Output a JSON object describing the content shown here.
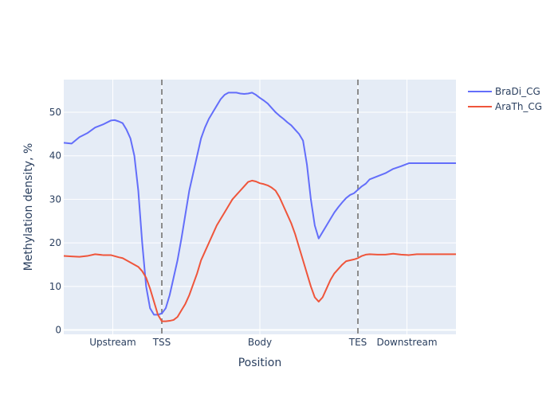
{
  "chart_data": {
    "type": "line",
    "xlabel": "Position",
    "ylabel": "Methylation density, %",
    "xlim": [
      0,
      100
    ],
    "ylim": [
      -1,
      57.5
    ],
    "y_ticks": [
      0,
      10,
      20,
      30,
      40,
      50
    ],
    "x_ticks": [
      {
        "label": "Upstream",
        "x": 12.5
      },
      {
        "label": "TSS",
        "x": 25
      },
      {
        "label": "Body",
        "x": 50
      },
      {
        "label": "TES",
        "x": 75
      },
      {
        "label": "Downstream",
        "x": 87.5
      }
    ],
    "vlines": [
      25,
      75
    ],
    "grid": true,
    "legend_position": "top-right",
    "series": [
      {
        "name": "BraDi_CG",
        "color": "#636efa",
        "x": [
          0,
          2,
          4,
          6,
          8,
          10,
          12,
          13,
          14,
          15,
          16,
          17,
          18,
          19,
          20,
          21,
          22,
          23,
          24,
          25,
          26,
          27,
          28,
          29,
          30,
          31,
          32,
          33,
          34,
          35,
          36,
          37,
          38,
          39,
          40,
          41,
          42,
          43,
          44,
          45,
          46,
          47,
          48,
          49,
          50,
          51,
          52,
          53,
          54,
          55,
          56,
          57,
          58,
          59,
          60,
          61,
          62,
          63,
          64,
          65,
          66,
          67,
          68,
          69,
          70,
          71,
          72,
          73,
          74,
          75,
          76,
          77,
          78,
          80,
          82,
          84,
          86,
          88,
          90,
          92,
          94,
          96,
          98,
          100
        ],
        "values": [
          43,
          42.8,
          44.3,
          45.2,
          46.5,
          47.2,
          48.1,
          48.2,
          47.9,
          47.5,
          46,
          44,
          40,
          32,
          20,
          10,
          5,
          3.5,
          3.5,
          3.8,
          5,
          8,
          12,
          16,
          21,
          26.5,
          32,
          36,
          40,
          44,
          46.5,
          48.5,
          50,
          51.5,
          53,
          54,
          54.5,
          54.5,
          54.5,
          54.3,
          54.2,
          54.3,
          54.5,
          54,
          53.3,
          52.7,
          52,
          51,
          50,
          49.2,
          48.5,
          47.7,
          47,
          46,
          45,
          43.5,
          38,
          30,
          24,
          21,
          22.5,
          24,
          25.5,
          27,
          28.2,
          29.3,
          30.3,
          31,
          31.4,
          32.2,
          33,
          33.6,
          34.6,
          35.3,
          36,
          37,
          37.6,
          38.3,
          38.3,
          38.3,
          38.3,
          38.3,
          38.3,
          38.3
        ]
      },
      {
        "name": "AraTh_CG",
        "color": "#ef553b",
        "x": [
          0,
          2,
          4,
          6,
          8,
          10,
          12,
          14,
          15,
          16,
          17,
          18,
          19,
          20,
          21,
          22,
          23,
          24,
          25,
          26,
          27,
          28,
          29,
          30,
          31,
          32,
          33,
          34,
          35,
          36,
          37,
          38,
          39,
          40,
          41,
          42,
          43,
          44,
          45,
          46,
          47,
          48,
          49,
          50,
          51,
          52,
          53,
          54,
          55,
          56,
          57,
          58,
          59,
          60,
          61,
          62,
          63,
          64,
          65,
          66,
          67,
          68,
          69,
          70,
          71,
          72,
          73,
          74,
          75,
          76,
          77,
          78,
          80,
          82,
          84,
          86,
          88,
          90,
          92,
          94,
          96,
          98,
          100
        ],
        "values": [
          17,
          16.9,
          16.8,
          17,
          17.4,
          17.2,
          17.2,
          16.7,
          16.5,
          16,
          15.5,
          15,
          14.5,
          13.5,
          12,
          9.5,
          6.5,
          3.5,
          2,
          2,
          2.1,
          2.3,
          3,
          4.5,
          6,
          8,
          10.5,
          13,
          16,
          18,
          20,
          22,
          24,
          25.5,
          27,
          28.5,
          30,
          31,
          32,
          33,
          34,
          34.3,
          34.1,
          33.7,
          33.5,
          33.2,
          32.7,
          32,
          30.5,
          28.5,
          26.5,
          24.5,
          22,
          19,
          16,
          13,
          10,
          7.5,
          6.5,
          7.5,
          9.5,
          11.5,
          13,
          14,
          15,
          15.8,
          16,
          16.2,
          16.5,
          17,
          17.3,
          17.4,
          17.3,
          17.3,
          17.5,
          17.3,
          17.2,
          17.4,
          17.4,
          17.4,
          17.4,
          17.4,
          17.4
        ]
      }
    ]
  }
}
